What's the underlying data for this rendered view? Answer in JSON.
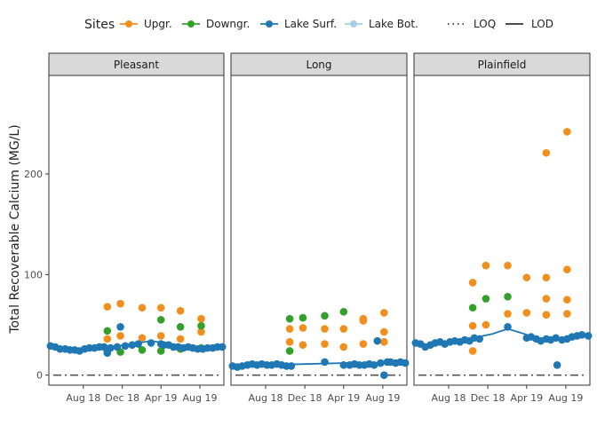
{
  "chart_data": {
    "type": "scatter",
    "ylabel": "Total Recoverable Calcium (MG/L)",
    "xlabel": "",
    "ylim": [
      -10,
      298
    ],
    "xlim": [
      "2018-04-15",
      "2019-10-15"
    ],
    "y_ticks": [
      0,
      100,
      200
    ],
    "x_ticks": [
      {
        "date": "2018-08-01",
        "label": "Aug 18"
      },
      {
        "date": "2018-12-01",
        "label": "Dec 18"
      },
      {
        "date": "2019-04-01",
        "label": "Apr 19"
      },
      {
        "date": "2019-08-01",
        "label": "Aug 19"
      }
    ],
    "grid": false,
    "legend": {
      "position": "top",
      "title": "Sites",
      "entries": [
        {
          "name": "Upgr.",
          "color": "#f28e1c"
        },
        {
          "name": "Downgr.",
          "color": "#33a02c"
        },
        {
          "name": "Lake Surf.",
          "color": "#1f78b4"
        },
        {
          "name": "Lake Bot.",
          "color": "#a6cee3"
        }
      ],
      "lines": [
        {
          "name": "LOQ",
          "style": "dotted"
        },
        {
          "name": "LOD",
          "style": "solid"
        }
      ]
    },
    "reference_line": {
      "y": 0,
      "style": "dash-dot",
      "color": "#555555"
    },
    "panels": [
      {
        "name": "Pleasant",
        "series": [
          {
            "name": "Upgr.",
            "points": [
              [
                "2018-10-15",
                68
              ],
              [
                "2018-10-15",
                36
              ],
              [
                "2018-11-25",
                71
              ],
              [
                "2018-11-25",
                39
              ],
              [
                "2019-02-01",
                67
              ],
              [
                "2019-02-01",
                37
              ],
              [
                "2019-04-01",
                67
              ],
              [
                "2019-04-01",
                39
              ],
              [
                "2019-06-01",
                64
              ],
              [
                "2019-06-01",
                36
              ],
              [
                "2019-08-05",
                56
              ],
              [
                "2019-08-05",
                43
              ]
            ]
          },
          {
            "name": "Downgr.",
            "points": [
              [
                "2018-10-15",
                44
              ],
              [
                "2018-10-15",
                23
              ],
              [
                "2018-11-25",
                23
              ],
              [
                "2019-02-01",
                25
              ],
              [
                "2019-04-01",
                55
              ],
              [
                "2019-04-01",
                24
              ],
              [
                "2019-06-01",
                48
              ],
              [
                "2019-06-01",
                26
              ],
              [
                "2019-08-05",
                49
              ],
              [
                "2019-08-05",
                27
              ]
            ]
          },
          {
            "name": "Lake Surf.",
            "points": [
              [
                "2018-04-20",
                29
              ],
              [
                "2018-05-05",
                28
              ],
              [
                "2018-05-20",
                26
              ],
              [
                "2018-06-05",
                26
              ],
              [
                "2018-06-20",
                25
              ],
              [
                "2018-07-05",
                25
              ],
              [
                "2018-07-20",
                24
              ],
              [
                "2018-08-05",
                26
              ],
              [
                "2018-08-20",
                27
              ],
              [
                "2018-09-05",
                27
              ],
              [
                "2018-09-20",
                28
              ],
              [
                "2018-10-05",
                28
              ],
              [
                "2018-10-15",
                22
              ],
              [
                "2018-10-25",
                27
              ],
              [
                "2018-11-15",
                28
              ],
              [
                "2018-11-25",
                48
              ],
              [
                "2018-12-10",
                29
              ],
              [
                "2019-01-01",
                30
              ],
              [
                "2019-01-20",
                31
              ],
              [
                "2019-03-01",
                32
              ],
              [
                "2019-04-01",
                31
              ],
              [
                "2019-04-10",
                30
              ],
              [
                "2019-04-25",
                30
              ],
              [
                "2019-05-10",
                28
              ],
              [
                "2019-05-25",
                28
              ],
              [
                "2019-06-10",
                27
              ],
              [
                "2019-06-25",
                28
              ],
              [
                "2019-07-10",
                27
              ],
              [
                "2019-07-25",
                26
              ],
              [
                "2019-08-10",
                26
              ],
              [
                "2019-08-25",
                27
              ],
              [
                "2019-09-10",
                27
              ],
              [
                "2019-09-25",
                28
              ],
              [
                "2019-10-10",
                28
              ]
            ]
          }
        ],
        "trend": [
          [
            "2018-04-20",
            29
          ],
          [
            "2018-07-01",
            25
          ],
          [
            "2018-10-01",
            27
          ],
          [
            "2019-01-01",
            31
          ],
          [
            "2019-03-01",
            34
          ],
          [
            "2019-05-01",
            31
          ],
          [
            "2019-07-01",
            28
          ],
          [
            "2019-10-10",
            28
          ]
        ]
      },
      {
        "name": "Long",
        "series": [
          {
            "name": "Upgr.",
            "points": [
              [
                "2018-10-15",
                46
              ],
              [
                "2018-10-15",
                33
              ],
              [
                "2018-11-25",
                47
              ],
              [
                "2018-11-25",
                30
              ],
              [
                "2019-02-01",
                46
              ],
              [
                "2019-02-01",
                31
              ],
              [
                "2019-04-01",
                46
              ],
              [
                "2019-04-01",
                28
              ],
              [
                "2019-06-01",
                56
              ],
              [
                "2019-06-01",
                54
              ],
              [
                "2019-06-01",
                31
              ],
              [
                "2019-08-05",
                62
              ],
              [
                "2019-08-05",
                43
              ],
              [
                "2019-08-05",
                33
              ]
            ]
          },
          {
            "name": "Downgr.",
            "points": [
              [
                "2018-10-15",
                56
              ],
              [
                "2018-10-15",
                24
              ],
              [
                "2018-11-25",
                57
              ],
              [
                "2019-02-01",
                59
              ],
              [
                "2019-04-01",
                63
              ]
            ]
          },
          {
            "name": "Lake Surf.",
            "points": [
              [
                "2018-04-20",
                9
              ],
              [
                "2018-05-05",
                8
              ],
              [
                "2018-05-20",
                9
              ],
              [
                "2018-06-05",
                10
              ],
              [
                "2018-06-20",
                11
              ],
              [
                "2018-07-05",
                10
              ],
              [
                "2018-07-20",
                11
              ],
              [
                "2018-08-05",
                10
              ],
              [
                "2018-08-20",
                10
              ],
              [
                "2018-09-05",
                11
              ],
              [
                "2018-09-20",
                10
              ],
              [
                "2018-10-05",
                9
              ],
              [
                "2018-10-20",
                9
              ],
              [
                "2019-02-01",
                13
              ],
              [
                "2019-04-01",
                10
              ],
              [
                "2019-04-20",
                10
              ],
              [
                "2019-05-05",
                11
              ],
              [
                "2019-05-20",
                10
              ],
              [
                "2019-06-05",
                10
              ],
              [
                "2019-06-20",
                11
              ],
              [
                "2019-07-05",
                10
              ],
              [
                "2019-07-15",
                34
              ],
              [
                "2019-07-25",
                12
              ],
              [
                "2019-08-05",
                0
              ],
              [
                "2019-08-15",
                13
              ],
              [
                "2019-08-25",
                13
              ],
              [
                "2019-09-10",
                12
              ],
              [
                "2019-09-25",
                13
              ],
              [
                "2019-10-10",
                12
              ]
            ]
          }
        ],
        "trend": [
          [
            "2018-04-20",
            9
          ],
          [
            "2018-08-01",
            10
          ],
          [
            "2018-12-01",
            11
          ],
          [
            "2019-04-01",
            12
          ],
          [
            "2019-08-01",
            12
          ],
          [
            "2019-10-10",
            12
          ]
        ]
      },
      {
        "name": "Plainfield",
        "series": [
          {
            "name": "Upgr.",
            "points": [
              [
                "2018-10-15",
                92
              ],
              [
                "2018-10-15",
                49
              ],
              [
                "2018-10-15",
                24
              ],
              [
                "2018-11-25",
                109
              ],
              [
                "2018-11-25",
                50
              ],
              [
                "2019-02-01",
                109
              ],
              [
                "2019-02-01",
                61
              ],
              [
                "2019-04-01",
                97
              ],
              [
                "2019-04-01",
                62
              ],
              [
                "2019-06-01",
                221
              ],
              [
                "2019-06-01",
                97
              ],
              [
                "2019-06-01",
                76
              ],
              [
                "2019-06-01",
                60
              ],
              [
                "2019-08-05",
                242
              ],
              [
                "2019-08-05",
                105
              ],
              [
                "2019-08-05",
                75
              ],
              [
                "2019-08-05",
                61
              ]
            ]
          },
          {
            "name": "Downgr.",
            "points": [
              [
                "2018-10-15",
                67
              ],
              [
                "2018-11-25",
                76
              ],
              [
                "2019-02-01",
                78
              ]
            ]
          },
          {
            "name": "Lake Surf.",
            "points": [
              [
                "2018-04-20",
                32
              ],
              [
                "2018-05-05",
                31
              ],
              [
                "2018-05-20",
                28
              ],
              [
                "2018-06-05",
                30
              ],
              [
                "2018-06-20",
                32
              ],
              [
                "2018-07-05",
                33
              ],
              [
                "2018-07-20",
                31
              ],
              [
                "2018-08-05",
                33
              ],
              [
                "2018-08-20",
                34
              ],
              [
                "2018-09-05",
                33
              ],
              [
                "2018-09-20",
                35
              ],
              [
                "2018-10-05",
                34
              ],
              [
                "2018-10-20",
                37
              ],
              [
                "2018-11-05",
                36
              ],
              [
                "2019-02-01",
                48
              ],
              [
                "2019-04-01",
                37
              ],
              [
                "2019-04-15",
                38
              ],
              [
                "2019-05-01",
                36
              ],
              [
                "2019-05-15",
                34
              ],
              [
                "2019-06-01",
                36
              ],
              [
                "2019-06-15",
                35
              ],
              [
                "2019-07-01",
                37
              ],
              [
                "2019-07-05",
                10
              ],
              [
                "2019-07-20",
                35
              ],
              [
                "2019-08-05",
                36
              ],
              [
                "2019-08-20",
                38
              ],
              [
                "2019-09-05",
                39
              ],
              [
                "2019-09-20",
                40
              ],
              [
                "2019-10-10",
                39
              ]
            ]
          }
        ],
        "trend": [
          [
            "2018-04-20",
            30
          ],
          [
            "2018-07-01",
            31
          ],
          [
            "2018-10-01",
            36
          ],
          [
            "2018-12-15",
            41
          ],
          [
            "2019-02-01",
            46
          ],
          [
            "2019-03-15",
            42
          ],
          [
            "2019-05-01",
            37
          ],
          [
            "2019-07-01",
            36
          ],
          [
            "2019-10-10",
            39
          ]
        ]
      }
    ]
  }
}
